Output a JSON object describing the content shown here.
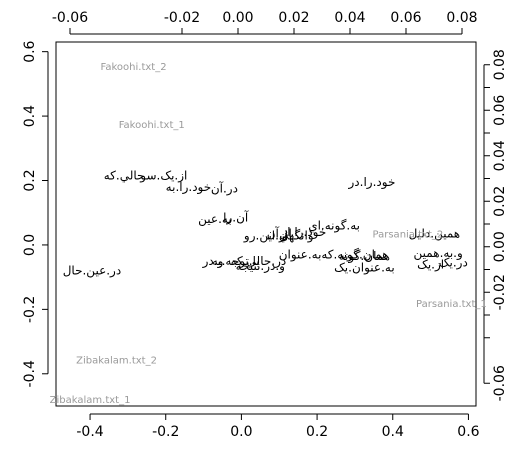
{
  "chart_data": {
    "type": "scatter",
    "title": "",
    "xlabel": "",
    "ylabel": "",
    "grid": false,
    "legend": "none",
    "primary_axes": {
      "xlim": [
        -0.49,
        0.62
      ],
      "ylim": [
        -0.5,
        0.63
      ],
      "xticks": [
        -0.4,
        -0.2,
        0.0,
        0.2,
        0.4,
        0.6
      ],
      "xtick_labels": [
        "-0.4",
        "-0.2",
        "0.0",
        "0.2",
        "0.4",
        "0.6"
      ],
      "yticks": [
        -0.4,
        -0.2,
        0.0,
        0.2,
        0.4,
        0.6
      ],
      "ytick_labels": [
        "-0.4",
        "-0.2",
        "0.0",
        "0.2",
        "0.4",
        "0.6"
      ]
    },
    "secondary_axes": {
      "xlim": [
        -0.065,
        0.085
      ],
      "ylim": [
        -0.07,
        0.09
      ],
      "xticks": [
        -0.06,
        -0.02,
        0.0,
        0.02,
        0.04,
        0.06,
        0.08
      ],
      "xtick_labels": [
        "-0.06",
        "-0.02",
        "0.00",
        "0.02",
        "0.04",
        "0.06",
        "0.08"
      ],
      "yticks": [
        -0.06,
        -0.02,
        0.0,
        0.02,
        0.04,
        0.06,
        0.08
      ],
      "ytick_labels": [
        "-0.06",
        "-0.02",
        "0.00",
        "0.02",
        "0.04",
        "0.06",
        "0.08"
      ],
      "minor_yticks": [
        -0.04,
        -0.03,
        -0.01,
        0.01,
        0.03,
        0.05,
        0.07
      ]
    },
    "documents": [
      {
        "label": "Fakoohi.txt_2",
        "x": -0.285,
        "y": 0.555
      },
      {
        "label": "Fakoohi.txt_1",
        "x": -0.237,
        "y": 0.375
      },
      {
        "label": "Parsania.txt_2",
        "x": 0.44,
        "y": 0.035
      },
      {
        "label": "Parsania.txt_1",
        "x": 0.555,
        "y": -0.18
      },
      {
        "label": "Zibakalam.txt_2",
        "x": -0.33,
        "y": -0.355
      },
      {
        "label": "Zibakalam.txt_1",
        "x": -0.4,
        "y": -0.478
      }
    ],
    "words": [
      {
        "label": "از.یک.سو",
        "x": -0.205,
        "y": 0.215
      },
      {
        "label": "حالي.که",
        "x": -0.31,
        "y": 0.215
      },
      {
        "label": "خود.را.به",
        "x": -0.14,
        "y": 0.18
      },
      {
        "label": "در.آن",
        "x": -0.045,
        "y": 0.175
      },
      {
        "label": "خود.را.در",
        "x": 0.345,
        "y": 0.195
      },
      {
        "label": "آن.را",
        "x": -0.015,
        "y": 0.085
      },
      {
        "label": "به.عين",
        "x": -0.07,
        "y": 0.08
      },
      {
        "label": "به.گونه.اي",
        "x": 0.245,
        "y": 0.06
      },
      {
        "label": "خود.را.از",
        "x": 0.165,
        "y": 0.04
      },
      {
        "label": "از.آن",
        "x": 0.1,
        "y": 0.035
      },
      {
        "label": "وانگهي",
        "x": 0.145,
        "y": 0.03
      },
      {
        "label": "همين.دليل",
        "x": 0.51,
        "y": 0.035
      },
      {
        "label": "از.این.رو",
        "x": 0.065,
        "y": 0.03
      },
      {
        "label": "در.عین.حال",
        "x": -0.395,
        "y": -0.08
      },
      {
        "label": "به.عنوان",
        "x": 0.155,
        "y": -0.03
      },
      {
        "label": "همان.گونه.که",
        "x": 0.3,
        "y": -0.03
      },
      {
        "label": "همان.گونه",
        "x": 0.325,
        "y": -0.035
      },
      {
        "label": "و.به.همين",
        "x": 0.52,
        "y": -0.025
      },
      {
        "label": "در.یک",
        "x": 0.56,
        "y": -0.055
      },
      {
        "label": "از.یک",
        "x": 0.5,
        "y": -0.06
      },
      {
        "label": "در.حالي.که",
        "x": 0.045,
        "y": -0.05
      },
      {
        "label": "با.توجه.به",
        "x": -0.015,
        "y": -0.05
      },
      {
        "label": "و.در",
        "x": -0.075,
        "y": -0.05
      },
      {
        "label": "و.در.نتيجه",
        "x": 0.05,
        "y": -0.065
      },
      {
        "label": "به.عنوان.یک",
        "x": 0.325,
        "y": -0.07
      }
    ]
  }
}
